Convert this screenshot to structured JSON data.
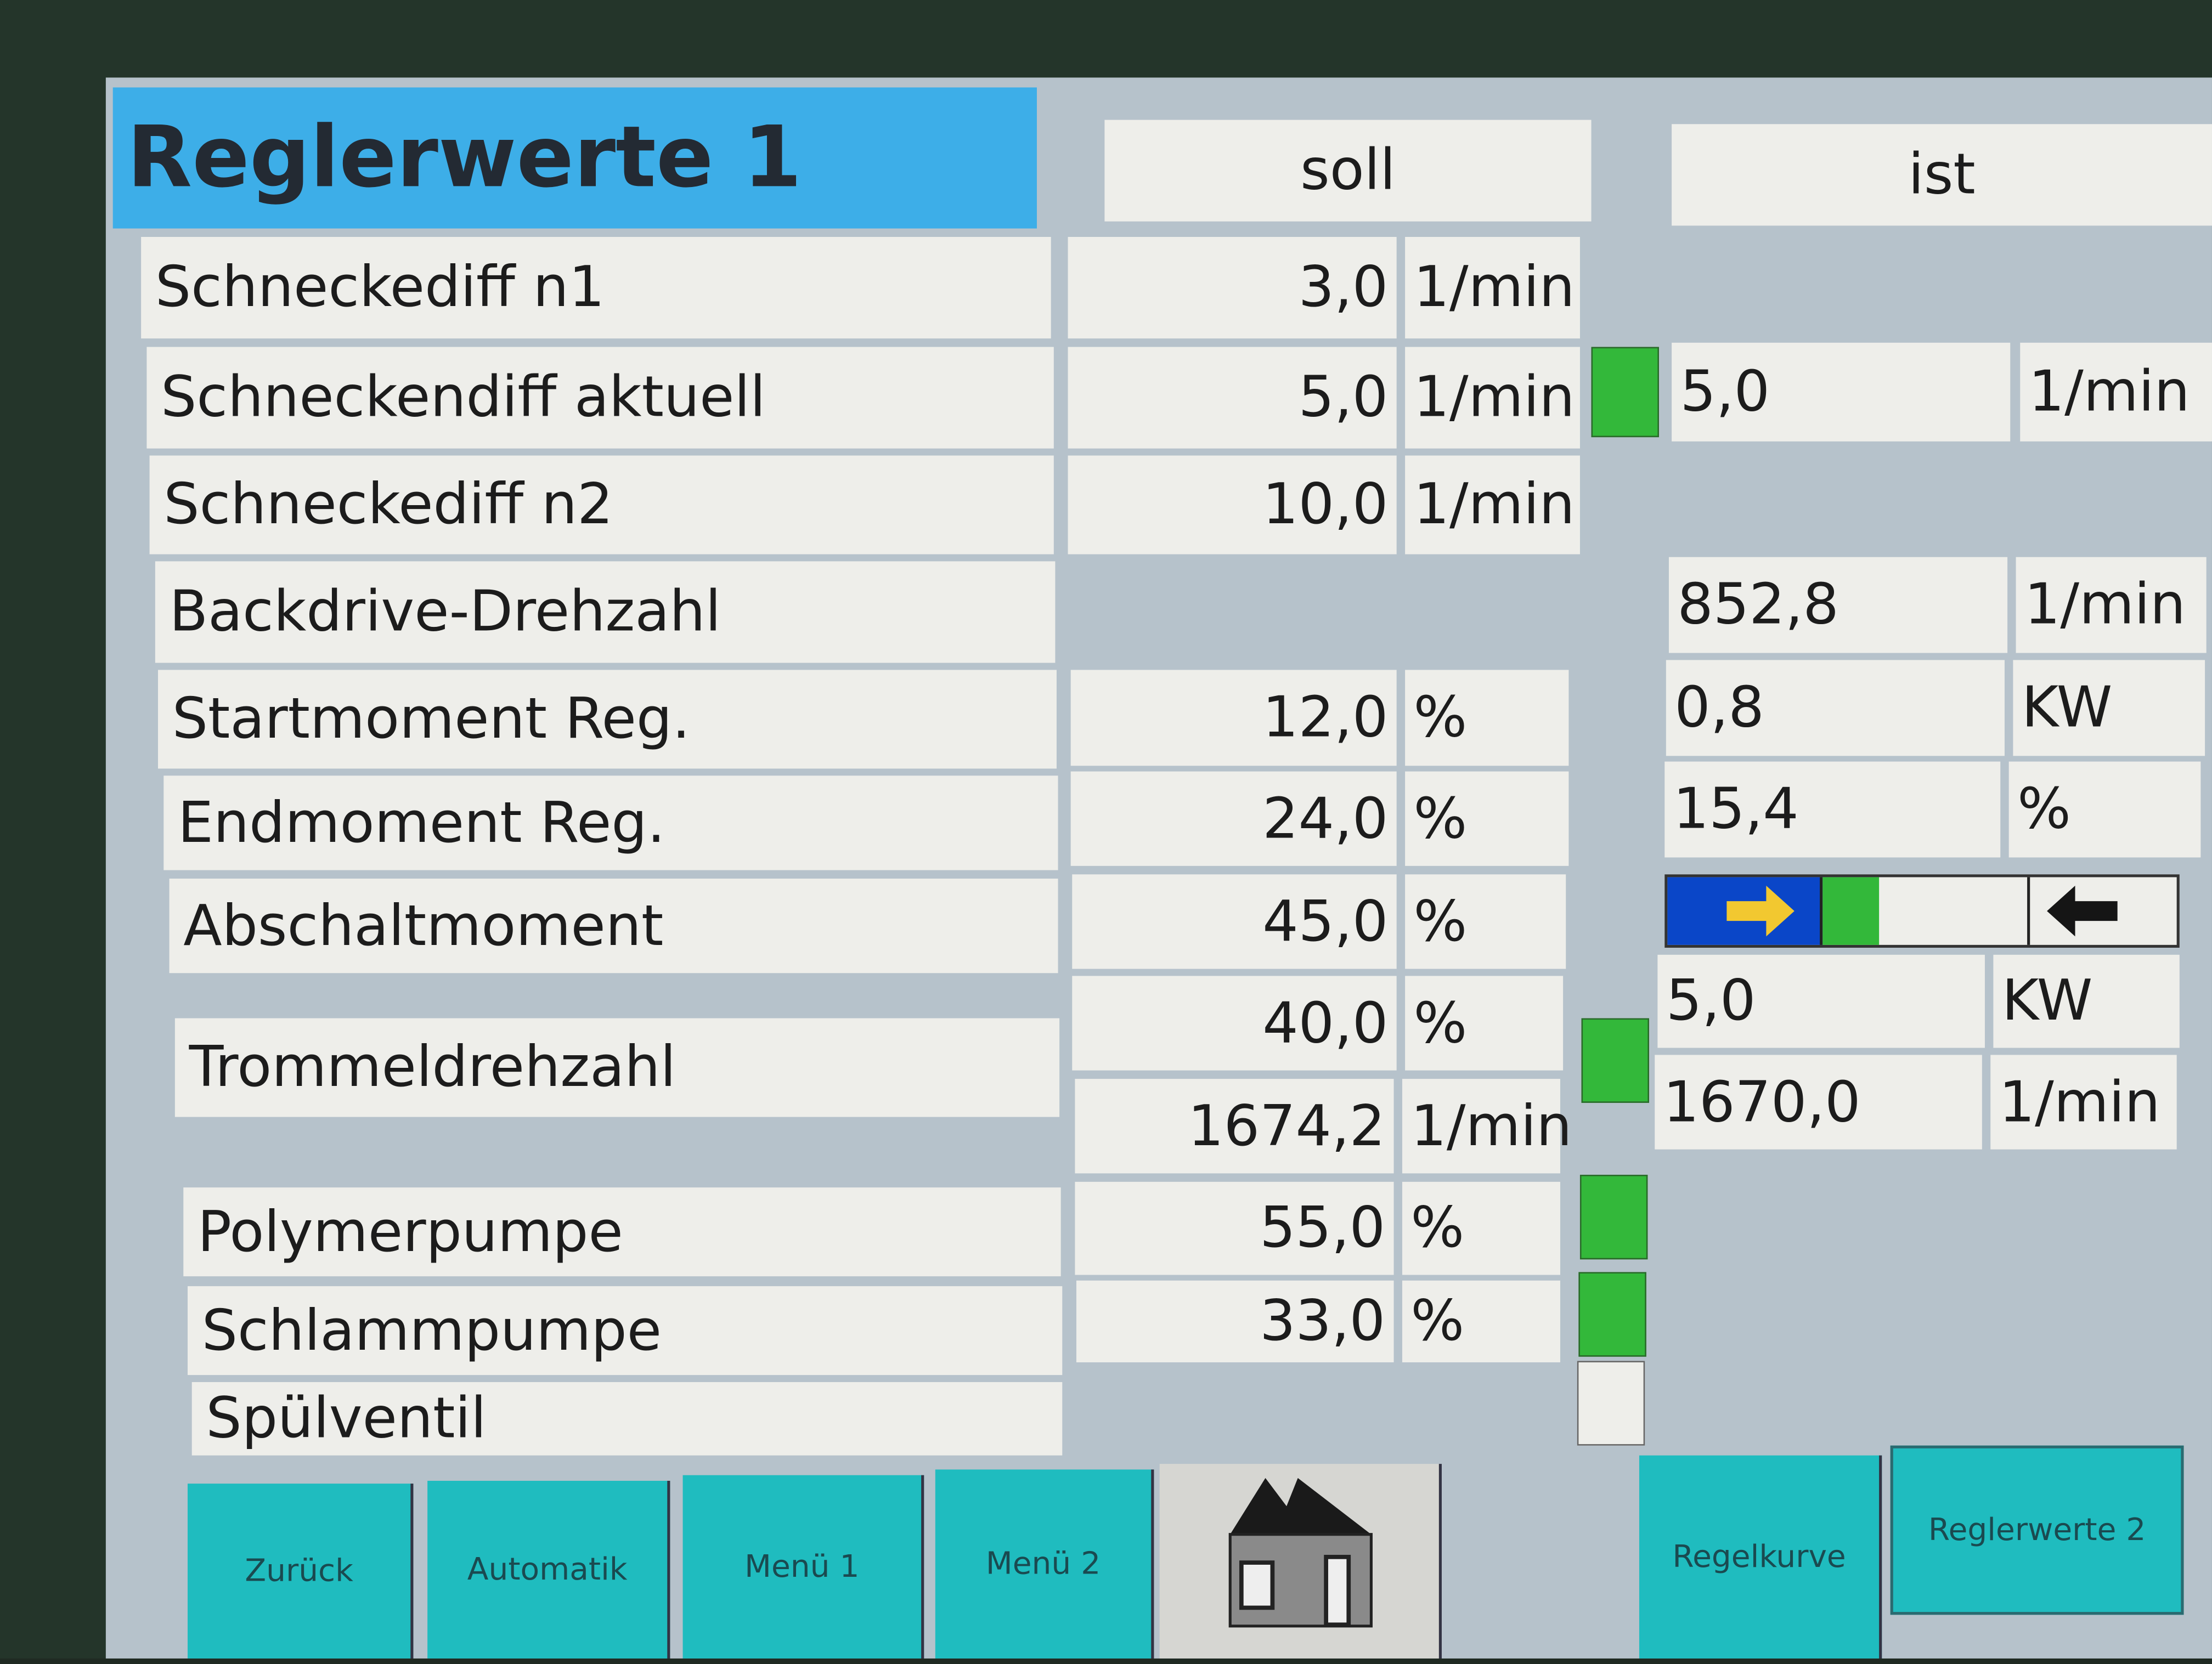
{
  "title": "Reglerwerte 1",
  "headers": {
    "soll": "soll",
    "ist": "ist"
  },
  "rows": [
    {
      "label": "Schneckediff n1",
      "soll": "3,0",
      "soll_unit": "1/min"
    },
    {
      "label": "Schneckendiff aktuell",
      "soll": "5,0",
      "soll_unit": "1/min",
      "indicator": "green",
      "ist": "5,0",
      "ist_unit": "1/min"
    },
    {
      "label": "Schneckediff n2",
      "soll": "10,0",
      "soll_unit": "1/min"
    },
    {
      "label": "Backdrive-Drehzahl",
      "ist": "852,8",
      "ist_unit": "1/min"
    },
    {
      "label": "Startmoment Reg.",
      "soll": "12,0",
      "soll_unit": "%",
      "ist": "0,8",
      "ist_unit": "KW"
    },
    {
      "label": "Endmoment Reg.",
      "soll": "24,0",
      "soll_unit": "%",
      "ist": "15,4",
      "ist_unit": "%"
    },
    {
      "label": "Abschaltmoment",
      "soll": "45,0",
      "soll_unit": "%"
    },
    {
      "label": "Trommeldrehzahl",
      "soll": "40,0",
      "soll_unit": "%",
      "soll2": "1674,2",
      "soll2_unit": "1/min",
      "indicator": "green",
      "ist": "5,0",
      "ist_unit": "KW",
      "ist2": "1670,0",
      "ist2_unit": "1/min"
    },
    {
      "label": "Polymerpumpe",
      "soll": "55,0",
      "soll_unit": "%",
      "indicator": "green"
    },
    {
      "label": "Schlammpumpe",
      "soll": "33,0",
      "soll_unit": "%",
      "indicator": "green"
    },
    {
      "label": "Spülventil",
      "indicator": "off"
    }
  ],
  "direction_bar": {
    "left_icon": "arrow-right-icon",
    "right_icon": "arrow-left-icon",
    "fill_color": "#33b83a",
    "left_color": "#0a46c8",
    "arrow_color": "#f2c830"
  },
  "buttons": [
    "Zurück",
    "Automatik",
    "Menü 1",
    "Menü 2",
    "Regelkurve",
    "Reglerwerte 2"
  ],
  "home_icon": "home-icon",
  "colors": {
    "title_bg": "#3daee8",
    "button_bg": "#1fbcbf",
    "indicator_on": "#33b83a"
  }
}
